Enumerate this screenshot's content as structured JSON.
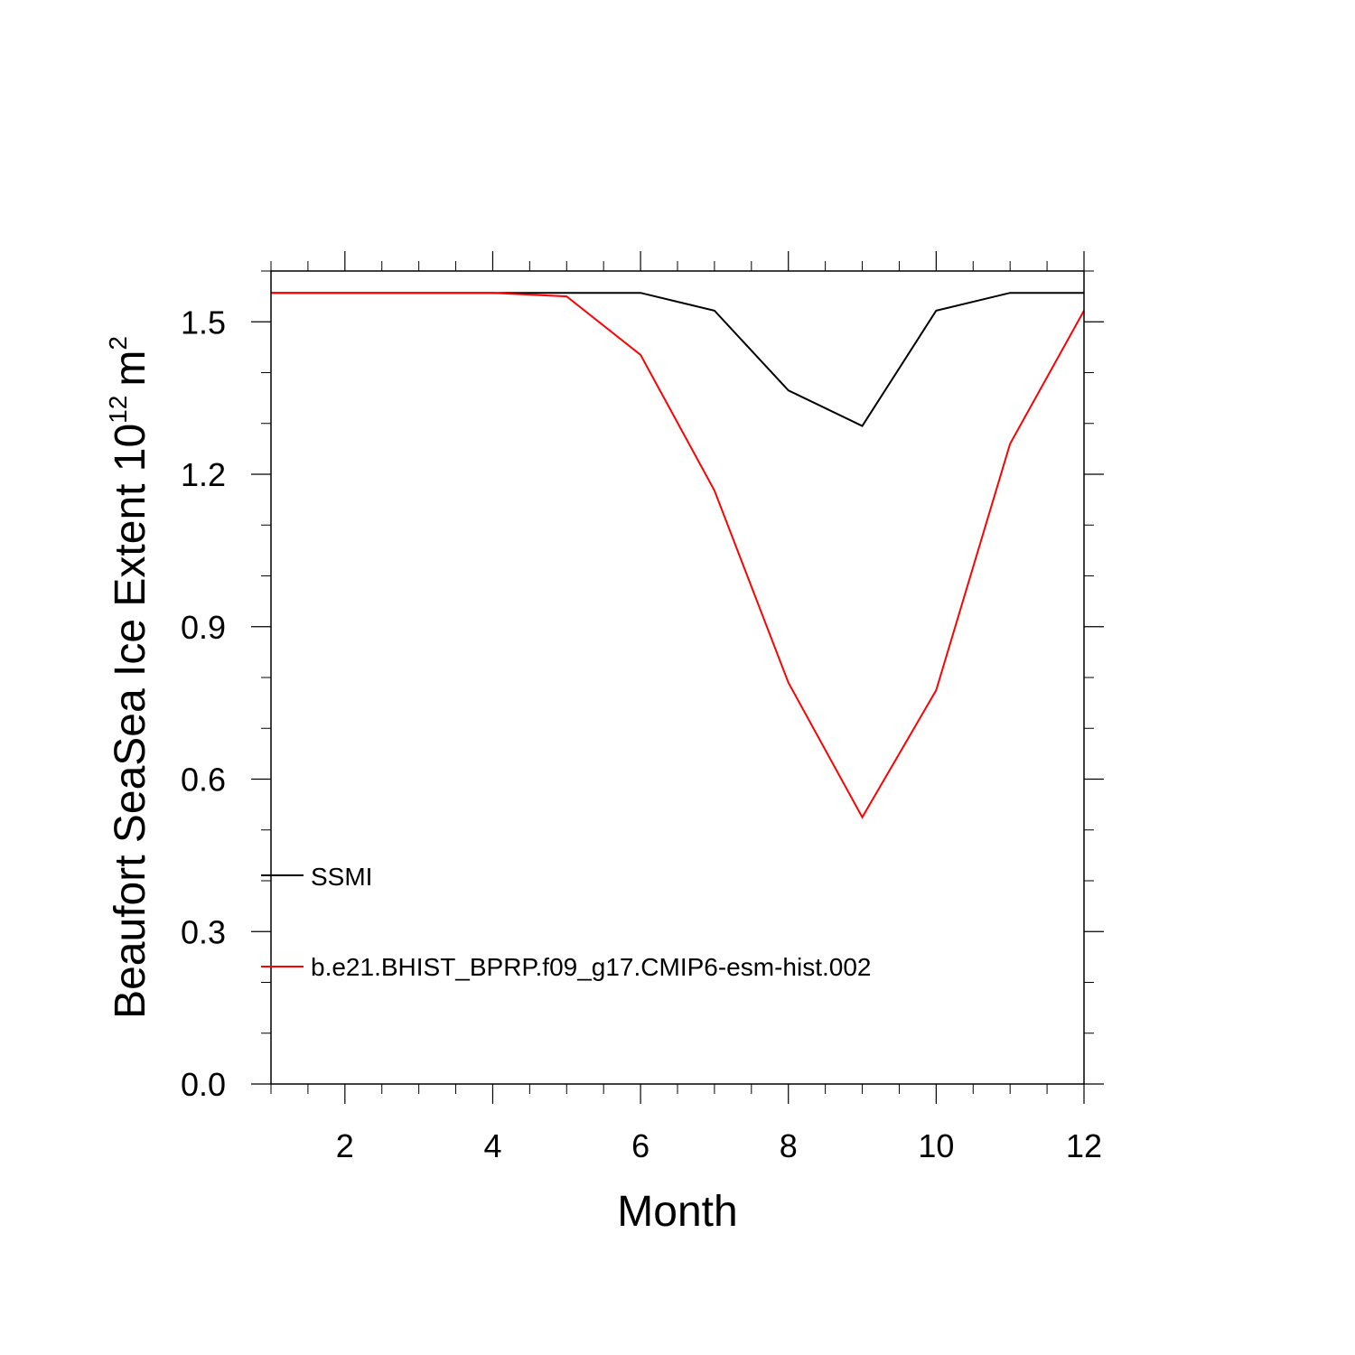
{
  "chart_data": {
    "type": "line",
    "xlabel": "Month",
    "ylabel": {
      "text": "Beaufort SeaSea Ice Extent 10",
      "exponent": "12",
      "unit": "m",
      "unit_exponent": "2"
    },
    "xlim": [
      1,
      12
    ],
    "ylim": [
      0,
      1.6
    ],
    "xticks": [
      2,
      4,
      6,
      8,
      10,
      12
    ],
    "xtick_labels": [
      "2",
      "4",
      "6",
      "8",
      "10",
      "12"
    ],
    "yticks": [
      0.0,
      0.3,
      0.6,
      0.9,
      1.2,
      1.5
    ],
    "ytick_labels": [
      "0.0",
      "0.3",
      "0.6",
      "0.9",
      "1.2",
      "1.5"
    ],
    "grid": false,
    "legend_position": "lower-left",
    "x": [
      1,
      2,
      3,
      4,
      5,
      6,
      7,
      8,
      9,
      10,
      11,
      12
    ],
    "series": [
      {
        "name": "SSMI",
        "color": "#000000",
        "values": [
          1.557,
          1.557,
          1.557,
          1.557,
          1.557,
          1.557,
          1.522,
          1.365,
          1.295,
          1.522,
          1.557,
          1.557
        ]
      },
      {
        "name": "b.e21.BHIST_BPRP.f09_g17.CMIP6-esm-hist.002",
        "color": "#ff0000",
        "values": [
          1.557,
          1.557,
          1.557,
          1.557,
          1.55,
          1.435,
          1.168,
          0.79,
          0.525,
          0.775,
          1.26,
          1.522
        ]
      }
    ]
  }
}
